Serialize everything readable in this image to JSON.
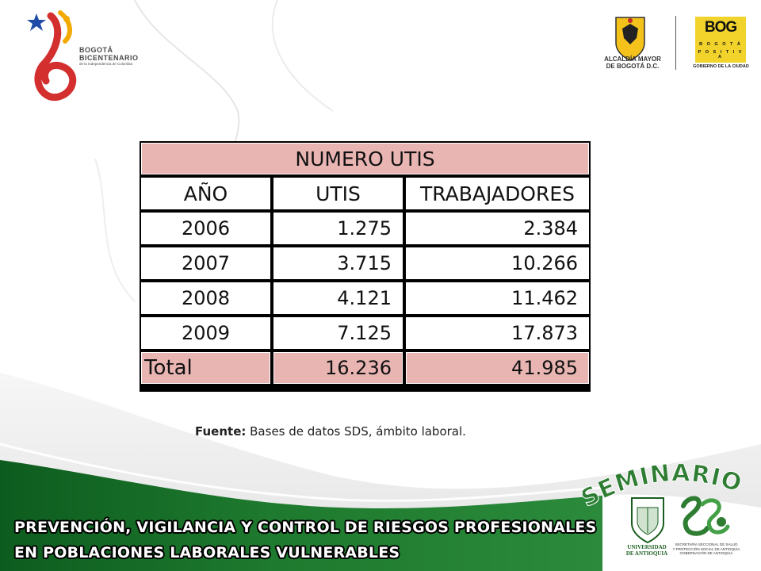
{
  "header": {
    "left_logo": {
      "line1": "BOGOTÁ",
      "line2": "BICENTENARIO",
      "line3": "de la Independencia de Colombia"
    },
    "alcaldia": {
      "line1": "ALCALDÍA MAYOR",
      "line2": "DE BOGOTÁ D.C."
    },
    "bog": {
      "title": "BOG",
      "sub1": "B O G O T Á",
      "sub2": "P O S I T I V A",
      "gobierno": "GOBIERNO DE LA CIUDAD"
    }
  },
  "table": {
    "title": "NUMERO UTIS",
    "columns": [
      "AÑO",
      "UTIS",
      "TRABAJADORES"
    ],
    "rows": [
      {
        "year": "2006",
        "utis": "1.275",
        "trabajadores": "2.384"
      },
      {
        "year": "2007",
        "utis": "3.715",
        "trabajadores": "10.266"
      },
      {
        "year": "2008",
        "utis": "4.121",
        "trabajadores": "11.462"
      },
      {
        "year": "2009",
        "utis": "7.125",
        "trabajadores": "17.873"
      }
    ],
    "total": {
      "label": "Total",
      "utis": "16.236",
      "trabajadores": "41.985"
    }
  },
  "source": {
    "label": "Fuente:",
    "text": " Bases de datos SDS, ámbito laboral."
  },
  "footer": {
    "seminario": "SEMINARIO",
    "line1": "PREVENCIÓN, VIGILANCIA Y CONTROL DE RIESGOS PROFESIONALES",
    "line2": "EN  POBLACIONES LABORALES VULNERABLES",
    "udea": {
      "line1": "UNIVERSIDAD",
      "line2": "DE ANTIOQUIA"
    },
    "ssa": {
      "line1": "SECRETARÍA SECCIONAL DE SALUD",
      "line2": "Y PROTECCIÓN SOCIAL DE ANTIOQUIA",
      "line3": "GOBERNACIÓN DE ANTIOQUIA"
    }
  },
  "colors": {
    "pink": "#e8b5b3",
    "green_dark": "#1f6b2c",
    "seminario_green": "#2e7d32",
    "bog_yellow": "#f2d32c"
  }
}
